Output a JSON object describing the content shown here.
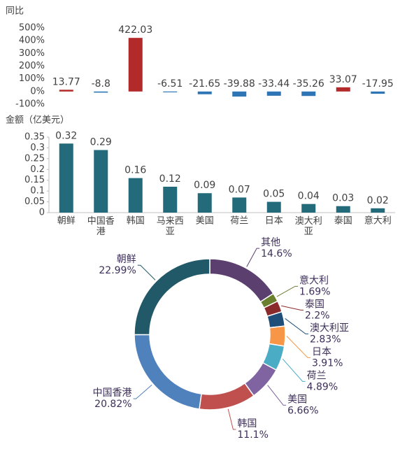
{
  "chart_data": [
    {
      "type": "bar",
      "y_label": "同比",
      "values": [
        13.77,
        -8.8,
        422.03,
        -6.51,
        -21.65,
        -39.88,
        -33.44,
        -35.26,
        33.07,
        -17.95
      ],
      "colors": [
        "#b22a2a",
        "#2e75b6",
        "#b22a2a",
        "#2e75b6",
        "#2e75b6",
        "#2e75b6",
        "#2e75b6",
        "#2e75b6",
        "#b22a2a",
        "#2e75b6"
      ],
      "ylim": [
        -100,
        500
      ],
      "yticks": [
        {
          "value": -100,
          "label": "-100%"
        },
        {
          "value": 0,
          "label": "0%"
        },
        {
          "value": 100,
          "label": "100%"
        },
        {
          "value": 200,
          "label": "200%"
        },
        {
          "value": 300,
          "label": "300%"
        },
        {
          "value": 400,
          "label": "400%"
        },
        {
          "value": 500,
          "label": "500%"
        }
      ]
    },
    {
      "type": "bar",
      "y_label": "金额（亿美元）",
      "categories": [
        "朝鲜",
        "中国香港",
        "韩国",
        "马来西亚",
        "美国",
        "荷兰",
        "日本",
        "澳大利亚",
        "泰国",
        "意大利"
      ],
      "values": [
        0.32,
        0.29,
        0.16,
        0.12,
        0.09,
        0.07,
        0.05,
        0.04,
        0.03,
        0.02
      ],
      "color": "#236b7a",
      "ylim": [
        0,
        0.35
      ],
      "yticks": [
        0,
        0.05,
        0.1,
        0.15,
        0.2,
        0.25,
        0.3,
        0.35
      ]
    },
    {
      "type": "pie",
      "donut": true,
      "categories": [
        "其他",
        "意大利",
        "泰国",
        "澳大利亚",
        "日本",
        "荷兰",
        "美国",
        "韩国",
        "中国香港",
        "朝鲜"
      ],
      "values": [
        14.6,
        1.69,
        2.2,
        2.83,
        3.91,
        4.89,
        6.66,
        11.1,
        20.82,
        22.99
      ],
      "value_labels": [
        "14.6%",
        "1.69%",
        "2.2%",
        "2.83%",
        "3.91%",
        "4.89%",
        "6.66%",
        "11.1%",
        "20.82%",
        "22.99%"
      ],
      "colors": [
        "#5b3f6e",
        "#6a7f2e",
        "#8b2a2a",
        "#1f4e79",
        "#f79646",
        "#4bacc6",
        "#8064a2",
        "#c0504d",
        "#4f81bd",
        "#215968"
      ]
    }
  ]
}
